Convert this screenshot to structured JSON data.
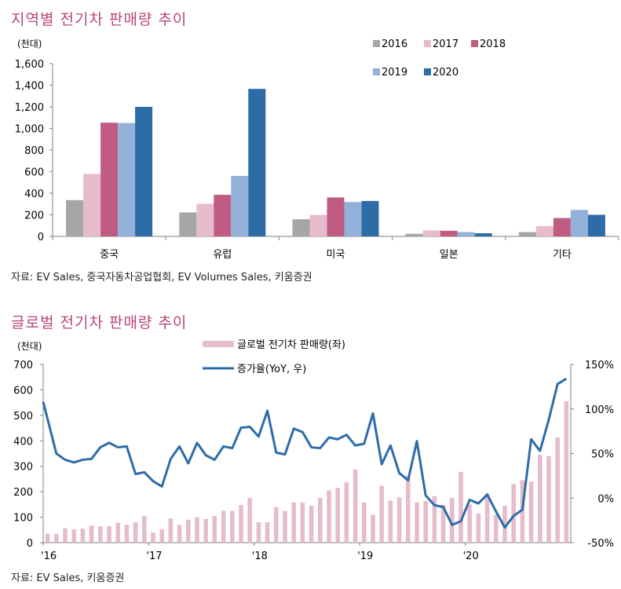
{
  "chart_data": [
    {
      "type": "bar",
      "title": "지역별 전기차 판매량 추이",
      "ylabel": "(천대)",
      "xlabel": "",
      "ylim": [
        0,
        1600
      ],
      "yticks": [
        0,
        200,
        400,
        600,
        800,
        1000,
        1200,
        1400,
        1600
      ],
      "ytick_labels": [
        "0",
        "200",
        "400",
        "600",
        "800",
        "1,000",
        "1,200",
        "1,400",
        "1,600"
      ],
      "categories": [
        "중국",
        "유럽",
        "미국",
        "일본",
        "기타"
      ],
      "series": [
        {
          "name": "2016",
          "color": "#a6a6a6",
          "values": [
            336,
            222,
            159,
            24,
            40
          ]
        },
        {
          "name": "2017",
          "color": "#e6bccb",
          "values": [
            579,
            302,
            199,
            55,
            95
          ]
        },
        {
          "name": "2018",
          "color": "#c05c84",
          "values": [
            1053,
            385,
            361,
            52,
            170
          ]
        },
        {
          "name": "2019",
          "color": "#93b1d8",
          "values": [
            1050,
            560,
            318,
            40,
            245
          ]
        },
        {
          "name": "2020",
          "color": "#2e6ca8",
          "values": [
            1200,
            1366,
            328,
            29,
            200
          ]
        }
      ],
      "legend": "top-right",
      "grid": false,
      "source": "자료: EV Sales, 중국자동차공업협회, EV Volumes Sales, 키움증권"
    },
    {
      "type": "bar+line",
      "title": "글로벌 전기차 판매량 추이",
      "ylabel": "(천대)",
      "ylim": [
        0,
        700
      ],
      "yticks": [
        0,
        100,
        200,
        300,
        400,
        500,
        600,
        700
      ],
      "ytick_labels": [
        "0",
        "100",
        "200",
        "300",
        "400",
        "500",
        "600",
        "700"
      ],
      "y2lim": [
        -50,
        150
      ],
      "y2ticks": [
        -50,
        0,
        50,
        100,
        150
      ],
      "y2tick_labels": [
        "-50%",
        "0%",
        "50%",
        "100%",
        "150%"
      ],
      "xtick_labels": [
        "'16",
        "'17",
        "'18",
        "'19",
        "'20"
      ],
      "months": 60,
      "legend": "top-center",
      "grid": false,
      "series": [
        {
          "name": "글로벌 전기차 판매량(좌)",
          "type": "bar",
          "axis": "left",
          "color": "#e6bccb",
          "values": [
            35,
            35,
            57,
            52,
            55,
            67,
            64,
            65,
            78,
            70,
            80,
            105,
            40,
            52,
            95,
            70,
            90,
            100,
            93,
            105,
            125,
            125,
            148,
            175,
            80,
            80,
            140,
            125,
            158,
            158,
            145,
            175,
            205,
            215,
            237,
            287,
            158,
            110,
            223,
            165,
            178,
            263,
            158,
            163,
            183,
            148,
            175,
            278,
            150,
            115,
            190,
            110,
            145,
            230,
            245,
            240,
            345,
            340,
            413,
            555
          ]
        },
        {
          "name": "증가율(YoY, 우)",
          "type": "line",
          "axis": "right",
          "color": "#2e6ca8",
          "values": [
            108,
            50,
            43,
            40,
            43,
            44,
            57,
            62,
            57,
            58,
            27,
            29,
            19,
            13,
            44,
            58,
            39,
            62,
            48,
            43,
            58,
            56,
            79,
            80,
            69,
            98,
            51,
            49,
            78,
            74,
            57,
            56,
            68,
            66,
            71,
            59,
            61,
            95,
            38,
            59,
            28,
            20,
            64,
            3,
            -8,
            -10,
            -30,
            -26,
            -2,
            -6,
            4,
            -15,
            -33,
            -20,
            -13,
            66,
            53,
            88,
            128,
            134
          ]
        }
      ],
      "source": "자료: EV Sales, 키움증권"
    }
  ]
}
